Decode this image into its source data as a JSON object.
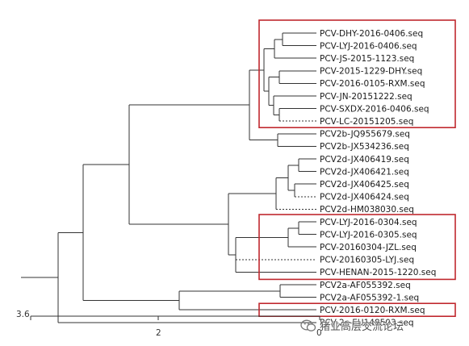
{
  "tree": {
    "leaves": [
      "PCV-DHY-2016-0406.seq",
      "PCV-LYJ-2016-0406.seq",
      "PCV-JS-2015-1123.seq",
      "PCV-2015-1229-DHY.seq",
      "PCV-2016-0105-RXM.seq",
      "PCV-JN-20151222.seq",
      "PCV-SXDX-2016-0406.seq",
      "PCV-LC-20151205.seq",
      "PCV2b-JQ955679.seq",
      "PCV2b-JX534236.seq",
      "PCV2d-JX406419.seq",
      "PCV2d-JX406421.seq",
      "PCV2d-JX406425.seq",
      "PCV2d-JX406424.seq",
      "PCV2d-HM038030.seq",
      "PCV-LYJ-2016-0304.seq",
      "PCV-LYJ-2016-0305.seq",
      "PCV-20160304-JZL.seq",
      "PCV-20160305-LYJ.seq",
      "PCV-HENAN-2015-1220.seq",
      "PCV2a-AF055392.seq",
      "PCV2a-AF055392-1.seq",
      "PCV-2016-0120-RXM.seq",
      "PCV-2c-EU148503.seq"
    ],
    "highlighted_groups": [
      [
        "PCV-DHY-2016-0406.seq",
        "PCV-LC-20151205.seq"
      ],
      [
        "PCV-LYJ-2016-0304.seq",
        "PCV-HENAN-2015-1220.seq"
      ],
      [
        "PCV-2016-0120-RXM.seq"
      ]
    ],
    "highlight_color": "#c0282e",
    "line_color": "#333333"
  },
  "axis": {
    "origin_label": "3.6",
    "tick_labels": [
      "2",
      "0"
    ]
  },
  "watermark": {
    "icon": "wechat-icon",
    "text": "猪业高层交流论坛"
  }
}
